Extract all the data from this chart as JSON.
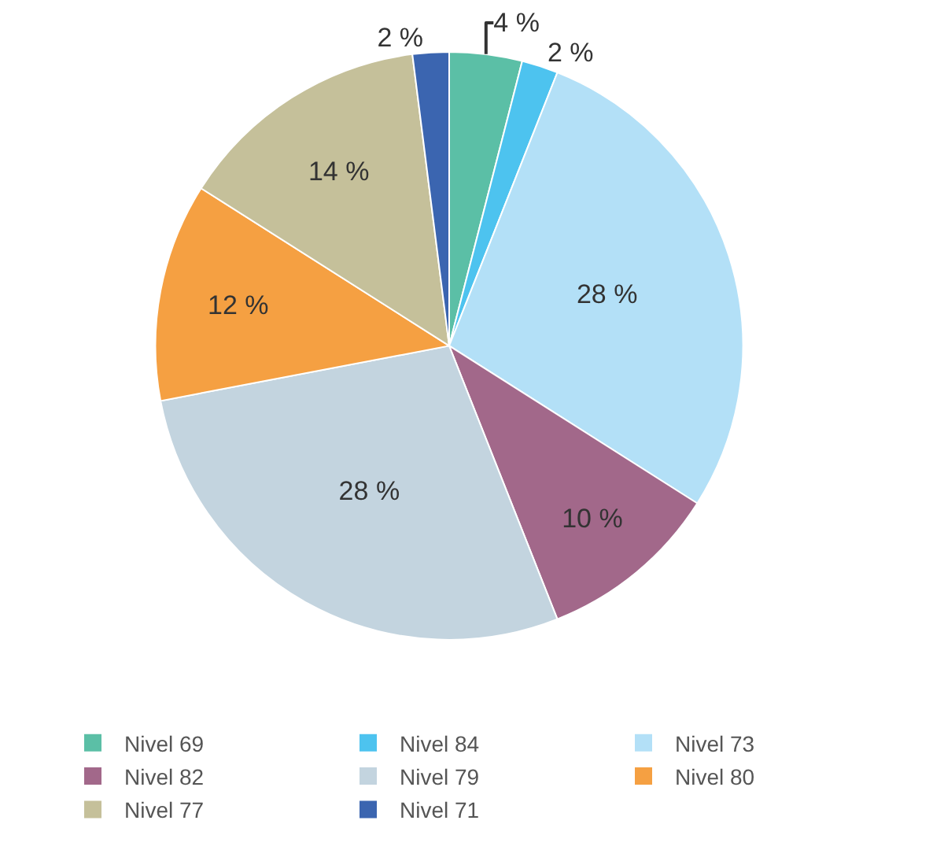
{
  "chart_data": {
    "type": "pie",
    "categories": [
      "Nivel 69",
      "Nivel 84",
      "Nivel 73",
      "Nivel 82",
      "Nivel 79",
      "Nivel 80",
      "Nivel 77",
      "Nivel 71"
    ],
    "values": [
      4,
      2,
      28,
      10,
      28,
      12,
      14,
      2
    ],
    "value_labels": [
      "4 %",
      "2 %",
      "28 %",
      "10 %",
      "28 %",
      "12 %",
      "14 %",
      "2 %"
    ],
    "colors": [
      "#5bbfa6",
      "#4dc3ef",
      "#b3e0f7",
      "#a2688a",
      "#c3d4df",
      "#f5a042",
      "#c5c09a",
      "#3b65b0"
    ],
    "legend": "bottom"
  }
}
